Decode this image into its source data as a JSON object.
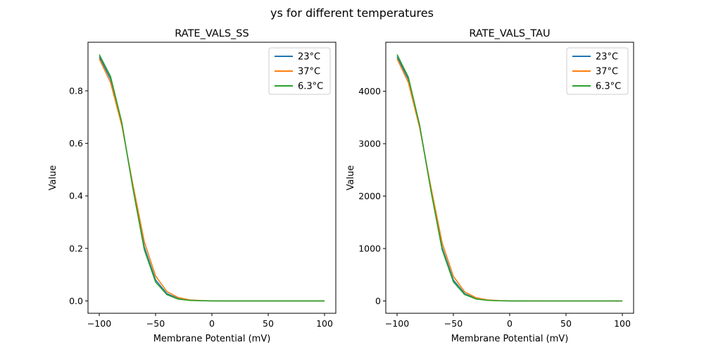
{
  "figure": {
    "suptitle": "ys for different temperatures"
  },
  "chart_data": [
    {
      "type": "line",
      "title": "RATE_VALS_SS",
      "xlabel": "Membrane Potential (mV)",
      "ylabel": "Value",
      "xlim": [
        -110,
        110
      ],
      "ylim": [
        -0.047,
        0.985
      ],
      "xticks": [
        -100,
        -50,
        0,
        50,
        100
      ],
      "xtick_labels": [
        "−100",
        "−50",
        "0",
        "50",
        "100"
      ],
      "yticks": [
        0.0,
        0.2,
        0.4,
        0.6,
        0.8
      ],
      "ytick_labels": [
        "0.0",
        "0.2",
        "0.4",
        "0.6",
        "0.8"
      ],
      "grid": false,
      "legend_position": "top-right",
      "x": [
        -100,
        -90,
        -80,
        -70,
        -60,
        -50,
        -40,
        -30,
        -20,
        -10,
        0,
        10,
        20,
        30,
        40,
        50,
        60,
        70,
        80,
        90,
        100
      ],
      "series": [
        {
          "name": "23°C",
          "color": "#1f77b4",
          "values": [
            0.93,
            0.845,
            0.675,
            0.43,
            0.205,
            0.08,
            0.028,
            0.009,
            0.003,
            0.001,
            0.0003,
            0.0001,
            0,
            0,
            0,
            0,
            0,
            0,
            0,
            0,
            0
          ]
        },
        {
          "name": "37°C",
          "color": "#ff7f0e",
          "values": [
            0.922,
            0.832,
            0.668,
            0.44,
            0.225,
            0.095,
            0.036,
            0.013,
            0.004,
            0.0015,
            0.0005,
            0.0002,
            0.0001,
            0,
            0,
            0,
            0,
            0,
            0,
            0,
            0
          ]
        },
        {
          "name": "6.3°C",
          "color": "#2ca02c",
          "values": [
            0.938,
            0.855,
            0.68,
            0.425,
            0.195,
            0.072,
            0.024,
            0.007,
            0.002,
            0.0007,
            0.0002,
            0.0001,
            0,
            0,
            0,
            0,
            0,
            0,
            0,
            0,
            0
          ]
        }
      ]
    },
    {
      "type": "line",
      "title": "RATE_VALS_TAU",
      "xlabel": "Membrane Potential (mV)",
      "ylabel": "Value",
      "xlim": [
        -110,
        110
      ],
      "ylim": [
        -235,
        4935
      ],
      "xticks": [
        -100,
        -50,
        0,
        50,
        100
      ],
      "xtick_labels": [
        "−100",
        "−50",
        "0",
        "50",
        "100"
      ],
      "yticks": [
        0,
        1000,
        2000,
        3000,
        4000
      ],
      "ytick_labels": [
        "0",
        "1000",
        "2000",
        "3000",
        "4000"
      ],
      "grid": false,
      "legend_position": "top-right",
      "x": [
        -100,
        -90,
        -80,
        -70,
        -60,
        -50,
        -40,
        -30,
        -20,
        -10,
        0,
        10,
        20,
        30,
        40,
        50,
        60,
        70,
        80,
        90,
        100
      ],
      "series": [
        {
          "name": "23°C",
          "color": "#1f77b4",
          "values": [
            4660,
            4230,
            3340,
            2140,
            1020,
            400,
            140,
            45,
            15,
            5,
            1.5,
            0.5,
            0,
            0,
            0,
            0,
            0,
            0,
            0,
            0,
            0
          ]
        },
        {
          "name": "37°C",
          "color": "#ff7f0e",
          "values": [
            4620,
            4170,
            3310,
            2180,
            1110,
            470,
            175,
            62,
            21,
            7,
            2.5,
            1,
            0.5,
            0,
            0,
            0,
            0,
            0,
            0,
            0,
            0
          ]
        },
        {
          "name": "6.3°C",
          "color": "#2ca02c",
          "values": [
            4700,
            4270,
            3360,
            2110,
            980,
            365,
            122,
            38,
            12,
            4,
            1,
            0.3,
            0,
            0,
            0,
            0,
            0,
            0,
            0,
            0,
            0
          ]
        }
      ]
    }
  ]
}
